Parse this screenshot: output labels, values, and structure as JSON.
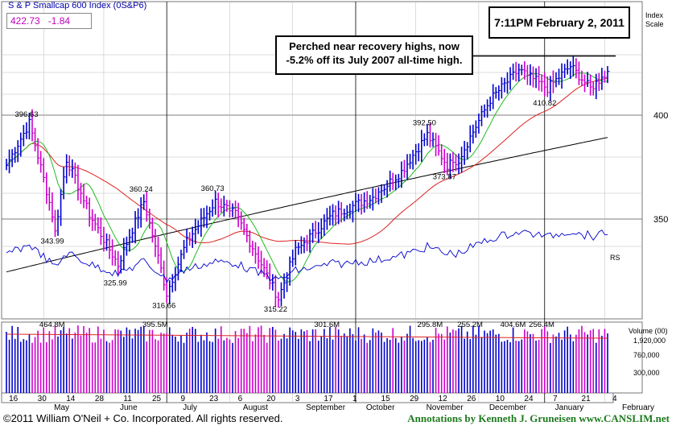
{
  "header": {
    "title": "S & P Smallcap 600 Index",
    "symbol": "(0S&P6)",
    "price": "422.73",
    "change": "-1.84",
    "timestamp": "7:11PM February 2, 2011",
    "index_scale_label": "Index Scale"
  },
  "annotation": {
    "line1": "Perched near recovery highs, now",
    "line2": "-5.2% off its July 2007 all-time high."
  },
  "footer": {
    "copyright": "©2011 William O'Neil + Co. Incorporated. All rights reserved.",
    "credit": "Annotations by Kenneth J. Gruneisen  www.CANSLIM.net"
  },
  "colors": {
    "up_bar": "#0000cc",
    "down_bar": "#cc00cc",
    "ma50": "#22bb22",
    "ma200_red": "#dd2222",
    "ma200_black": "#000000",
    "rs_line": "#0000cc",
    "volume_avg": "#dd2222"
  },
  "chart_data": {
    "type": "bar",
    "subtype": "ohlc-daily",
    "y_scale": "log",
    "y_ticks": [
      350,
      400
    ],
    "price_labels": [
      {
        "label": "396.63",
        "value": 396.63,
        "date": "2010-04-26"
      },
      {
        "label": "343.99",
        "value": 343.99,
        "date": "2010-05-07"
      },
      {
        "label": "360.24",
        "value": 360.24,
        "date": "2010-06-21"
      },
      {
        "label": "325.99",
        "value": 325.99,
        "date": "2010-06-08"
      },
      {
        "label": "316.66",
        "value": 316.66,
        "date": "2010-07-01"
      },
      {
        "label": "360.73",
        "value": 360.73,
        "date": "2010-07-26"
      },
      {
        "label": "315.22",
        "value": 315.22,
        "date": "2010-08-25"
      },
      {
        "label": "392.50",
        "value": 392.5,
        "date": "2010-11-05"
      },
      {
        "label": "373.87",
        "value": 373.87,
        "date": "2010-11-16"
      },
      {
        "label": "410.82",
        "value": 410.82,
        "date": "2011-01-04"
      }
    ],
    "resistance_line": 431.6,
    "volume_labels": [
      {
        "label": "464.8M",
        "date": "2010-05-06"
      },
      {
        "label": "395.5M",
        "date": "2010-06-25"
      },
      {
        "label": "301.6M",
        "date": "2010-09-17"
      },
      {
        "label": "295.8M",
        "date": "2010-11-08"
      },
      {
        "label": "255.2M",
        "date": "2010-11-26"
      },
      {
        "label": "404.6M",
        "date": "2010-12-17"
      },
      {
        "label": "256.4M",
        "date": "2010-12-31"
      }
    ],
    "volume_axis": {
      "title": "Volume (00)",
      "ticks": [
        "1,920,000",
        "760,000",
        "300,000"
      ]
    },
    "rs_label": "RS",
    "x_day_labels": [
      "16",
      "30",
      "14",
      "28",
      "11",
      "25",
      "9",
      "23",
      "6",
      "20",
      "3",
      "17",
      "1",
      "15",
      "29",
      "12",
      "26",
      "10",
      "24",
      "7",
      "21",
      "4"
    ],
    "x_month_labels": [
      "May",
      "June",
      "July",
      "August",
      "September",
      "October",
      "November",
      "December",
      "January",
      "February"
    ],
    "grid": true
  }
}
